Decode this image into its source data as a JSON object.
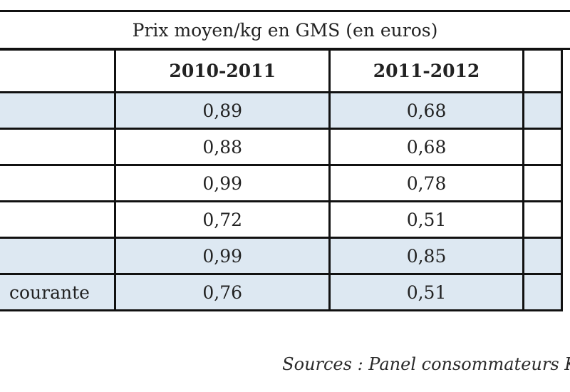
{
  "title": "Prix moyen/kg en GMS (en euros)",
  "headers": [
    "",
    "2010-2011",
    "2011-2012",
    ""
  ],
  "rows": [
    {
      "label": "",
      "v1": "0,89",
      "v2": "0,68",
      "shaded": true
    },
    {
      "label": "",
      "v1": "0,88",
      "v2": "0,68",
      "shaded": false
    },
    {
      "label": "",
      "v1": "0,99",
      "v2": "0,78",
      "shaded": false
    },
    {
      "label": "",
      "v1": "0,72",
      "v2": "0,51",
      "shaded": false
    },
    {
      "label": "",
      "v1": "0,99",
      "v2": "0,85",
      "shaded": true
    },
    {
      "label": "courante",
      "v1": "0,76",
      "v2": "0,51",
      "shaded": true
    }
  ],
  "source": "Sources : Panel consommateurs Kan",
  "colors": {
    "shade": "#dde8f2",
    "border": "#111111"
  }
}
